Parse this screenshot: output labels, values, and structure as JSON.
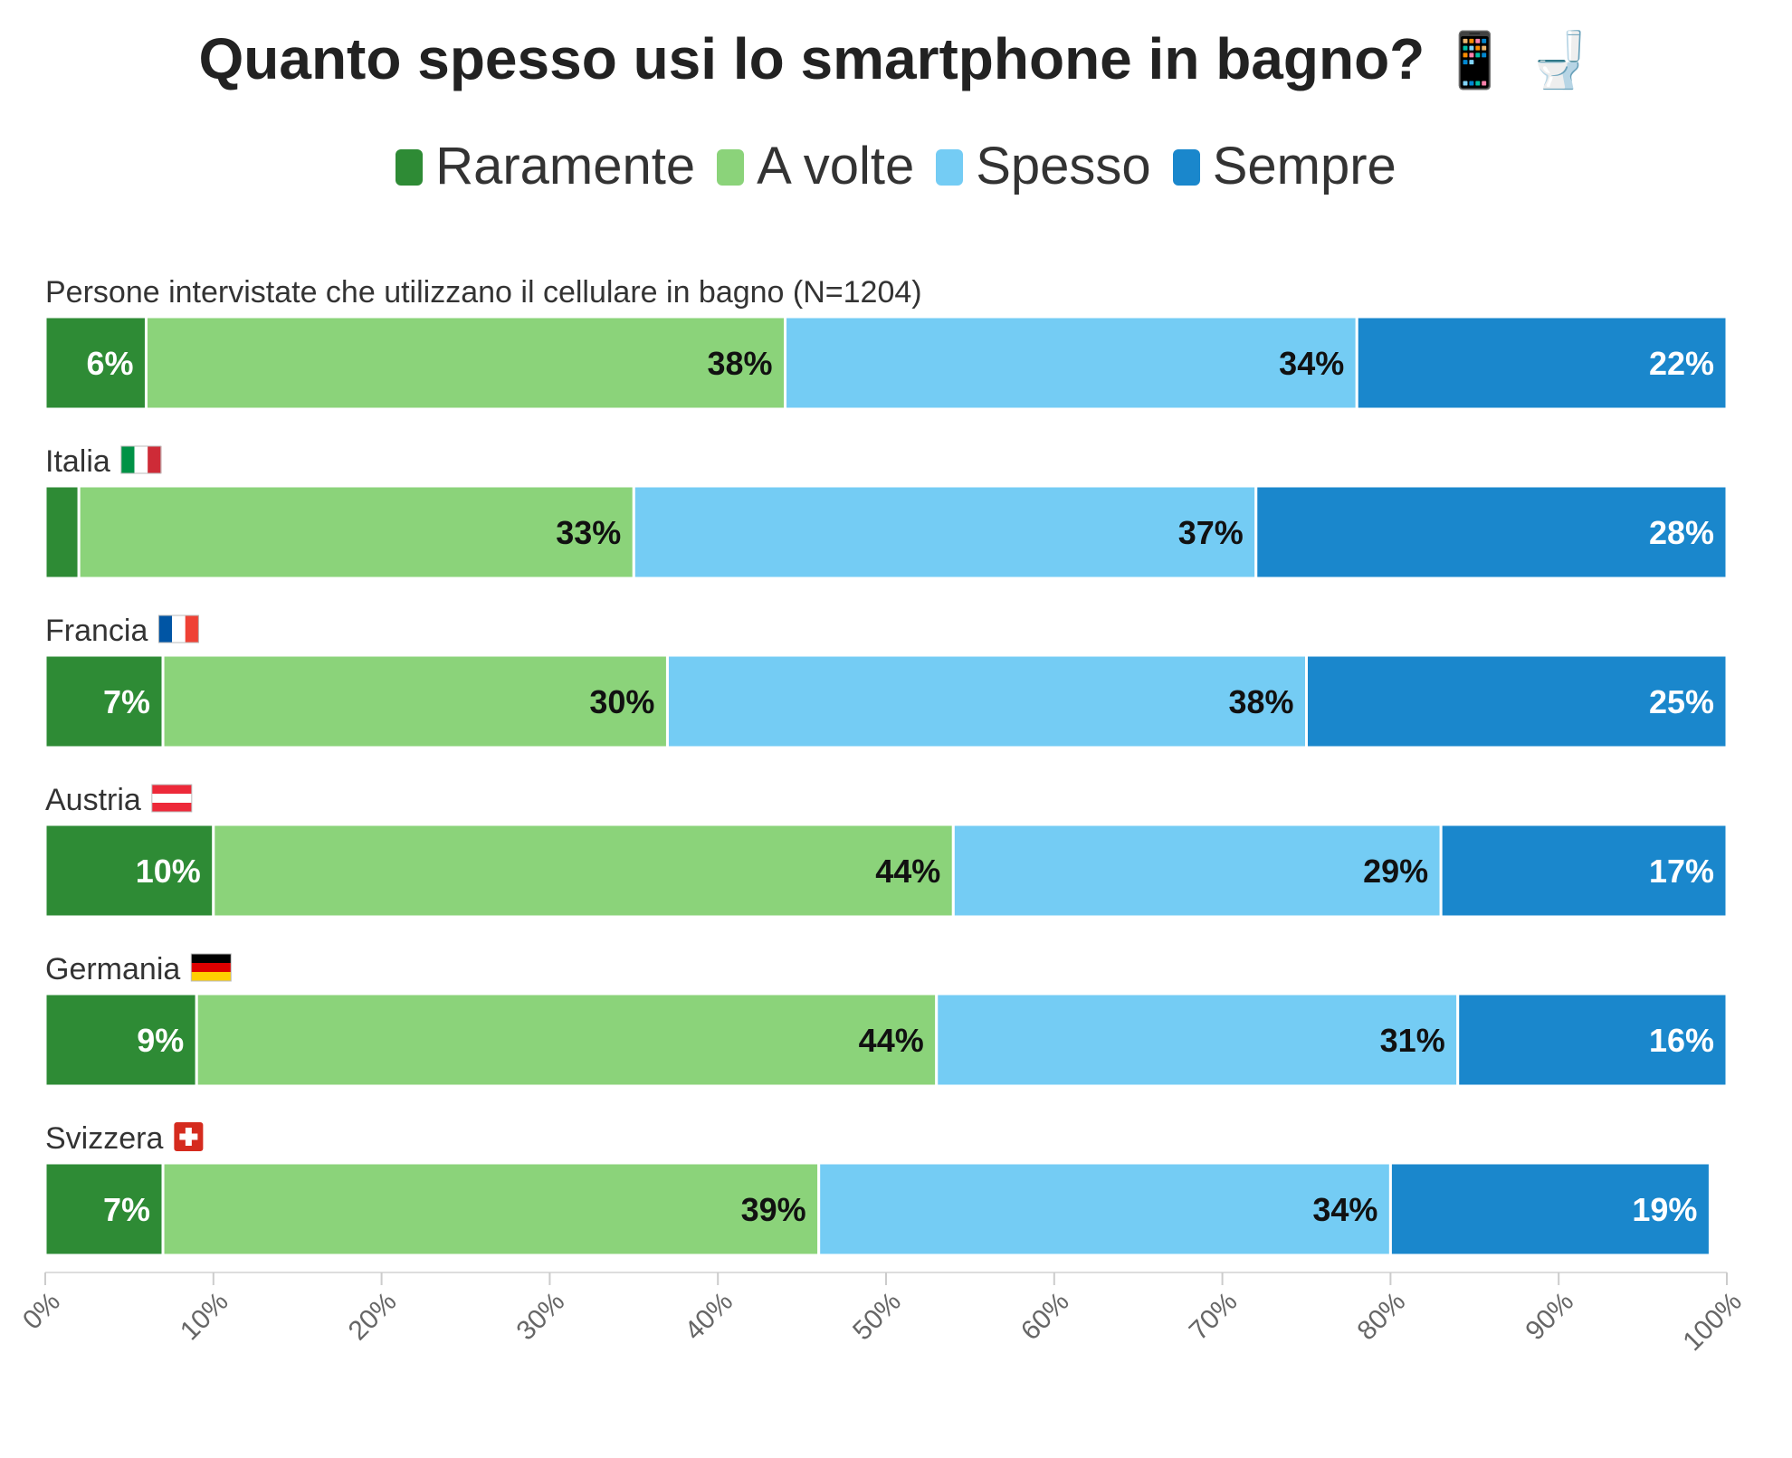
{
  "title": "Quanto spesso usi lo smartphone in bagno?",
  "title_emoji": "📱 🚽",
  "colors": {
    "raramente": "#2e8b35",
    "a_volte": "#8bd37a",
    "spesso": "#74ccf4",
    "sempre": "#1a87cc",
    "axis": "#dddddd"
  },
  "chart_data": {
    "type": "bar",
    "orientation": "horizontal",
    "stacked": true,
    "title": "Quanto spesso usi lo smartphone in bagno? 📱 🚽",
    "xlabel": "",
    "ylabel": "",
    "xlim": [
      0,
      100
    ],
    "legend_position": "top-center",
    "series_names": [
      "Raramente",
      "A volte",
      "Spesso",
      "Sempre"
    ],
    "series_colors": [
      "#2e8b35",
      "#8bd37a",
      "#74ccf4",
      "#1a87cc"
    ],
    "categories": [
      {
        "label": "Persone intervistate che utilizzano il cellulare in bagno (N=1204)",
        "flag": ""
      },
      {
        "label": "Italia",
        "flag": "it"
      },
      {
        "label": "Francia",
        "flag": "fr"
      },
      {
        "label": "Austria",
        "flag": "at"
      },
      {
        "label": "Germania",
        "flag": "de"
      },
      {
        "label": "Svizzera",
        "flag": "ch"
      }
    ],
    "values": [
      [
        6,
        38,
        34,
        22
      ],
      [
        2,
        33,
        37,
        28
      ],
      [
        7,
        30,
        38,
        25
      ],
      [
        10,
        44,
        29,
        17
      ],
      [
        9,
        44,
        31,
        16
      ],
      [
        7,
        39,
        34,
        19
      ]
    ],
    "data_labels": [
      [
        "6%",
        "38%",
        "34%",
        "22%"
      ],
      [
        "",
        "33%",
        "37%",
        "28%"
      ],
      [
        "7%",
        "30%",
        "38%",
        "25%"
      ],
      [
        "10%",
        "44%",
        "29%",
        "17%"
      ],
      [
        "9%",
        "44%",
        "31%",
        "16%"
      ],
      [
        "7%",
        "39%",
        "34%",
        "19%"
      ]
    ],
    "x_ticks": [
      "0%",
      "10%",
      "20%",
      "30%",
      "40%",
      "50%",
      "60%",
      "70%",
      "80%",
      "90%",
      "100%"
    ]
  }
}
